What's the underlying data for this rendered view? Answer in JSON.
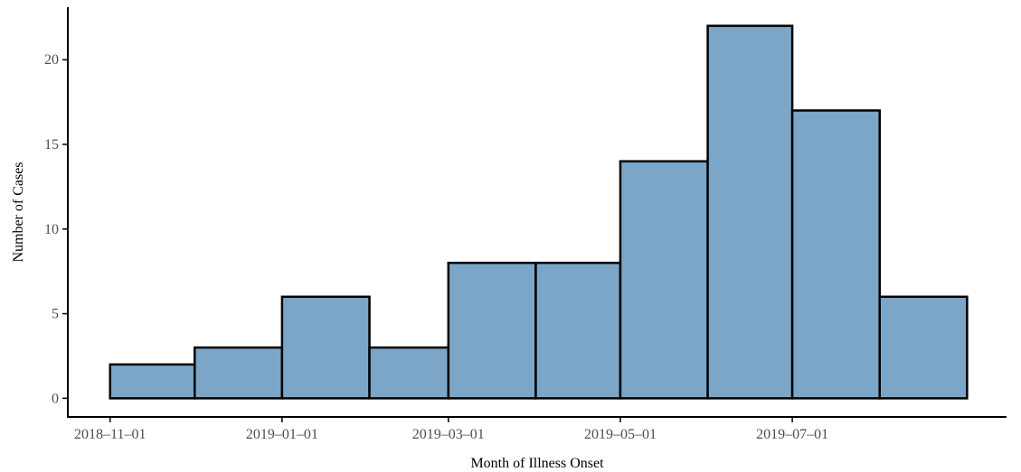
{
  "colors": {
    "bar_fill": "#7ba6c8",
    "bar_stroke": "#000000",
    "axis": "#000000",
    "tick_text": "#4d4d4d"
  },
  "chart_data": {
    "type": "bar",
    "title": "",
    "xlabel": "Month of Illness Onset",
    "ylabel": "Number of Cases",
    "bins": [
      {
        "start": "2018-11-01",
        "end": "2018-12-01",
        "value": 2
      },
      {
        "start": "2018-12-01",
        "end": "2019-01-01",
        "value": 3
      },
      {
        "start": "2019-01-01",
        "end": "2019-02-01",
        "value": 6
      },
      {
        "start": "2019-02-01",
        "end": "2019-03-01",
        "value": 3
      },
      {
        "start": "2019-03-01",
        "end": "2019-04-01",
        "value": 8
      },
      {
        "start": "2019-04-01",
        "end": "2019-05-01",
        "value": 8
      },
      {
        "start": "2019-05-01",
        "end": "2019-06-01",
        "value": 14
      },
      {
        "start": "2019-06-01",
        "end": "2019-07-01",
        "value": 22
      },
      {
        "start": "2019-07-01",
        "end": "2019-08-01",
        "value": 17
      },
      {
        "start": "2019-08-01",
        "end": "2019-09-01",
        "value": 6
      }
    ],
    "x_ticks": [
      "2018-11-01",
      "2019-01-01",
      "2019-03-01",
      "2019-05-01",
      "2019-07-01"
    ],
    "y_ticks": [
      0,
      5,
      10,
      15,
      20
    ],
    "ylim": [
      -1.1,
      23.1
    ],
    "xlim": [
      "2018-10-17",
      "2019-09-15"
    ],
    "grid": false,
    "legend": "none"
  }
}
